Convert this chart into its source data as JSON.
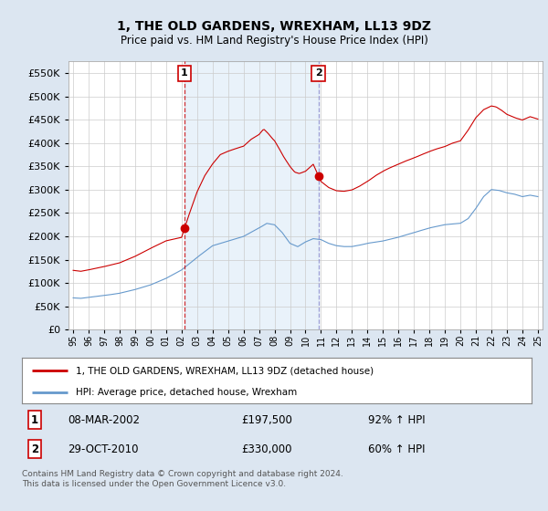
{
  "title": "1, THE OLD GARDENS, WREXHAM, LL13 9DZ",
  "subtitle": "Price paid vs. HM Land Registry's House Price Index (HPI)",
  "property_label": "1, THE OLD GARDENS, WREXHAM, LL13 9DZ (detached house)",
  "hpi_label": "HPI: Average price, detached house, Wrexham",
  "property_color": "#cc0000",
  "hpi_color": "#6699cc",
  "background_color": "#dce6f1",
  "plot_bg_color": "#ffffff",
  "shade_color": "#ddeeff",
  "ylim": [
    0,
    575000
  ],
  "yticks": [
    0,
    50000,
    100000,
    150000,
    200000,
    250000,
    300000,
    350000,
    400000,
    450000,
    500000,
    550000
  ],
  "sale1_date": "08-MAR-2002",
  "sale1_price": 197500,
  "sale1_label": "1",
  "sale1_x": 2002.19,
  "sale2_date": "29-OCT-2010",
  "sale2_price": 330000,
  "sale2_label": "2",
  "sale2_x": 2010.83,
  "sale1_pct": "92% ↑ HPI",
  "sale2_pct": "60% ↑ HPI",
  "footer": "Contains HM Land Registry data © Crown copyright and database right 2024.\nThis data is licensed under the Open Government Licence v3.0.",
  "xlim_left": 1994.7,
  "xlim_right": 2025.3
}
